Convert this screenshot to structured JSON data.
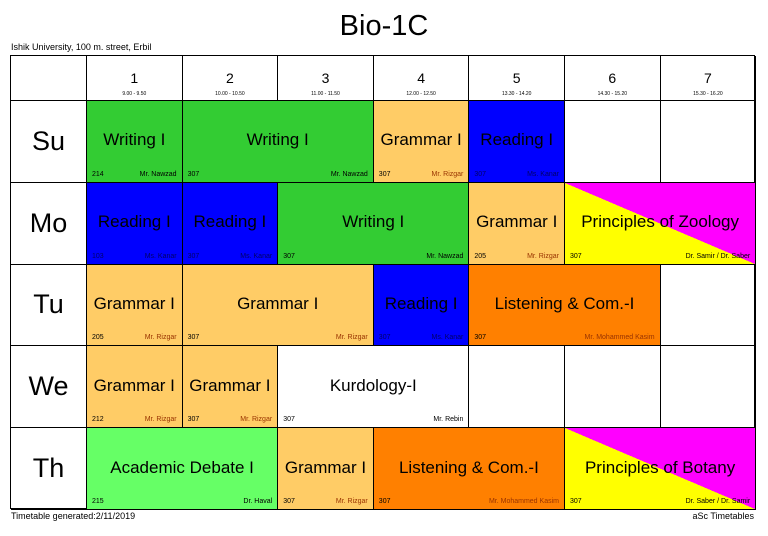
{
  "title": "Bio-1C",
  "subtitle": "Ishik University, 100 m. street, Erbil",
  "footer_left": "Timetable generated:2/11/2019",
  "footer_right": "aSc Timetables",
  "periods": [
    {
      "num": "1",
      "time": "9.00 - 9.50"
    },
    {
      "num": "2",
      "time": "10.00 - 10.50"
    },
    {
      "num": "3",
      "time": "11.00 - 11.50"
    },
    {
      "num": "4",
      "time": "12.00 - 12.50"
    },
    {
      "num": "5",
      "time": "13.30 - 14.20"
    },
    {
      "num": "6",
      "time": "14.30 - 15.20"
    },
    {
      "num": "7",
      "time": "15.30 - 16.20"
    }
  ],
  "colors": {
    "writing": "#33cc33",
    "reading": "#0000ff",
    "grammar": "#ffcc66",
    "listening": "#ff8000",
    "debate": "#66ff66",
    "kurdology": "#ffffff",
    "magenta": "#ff00ff",
    "yellow": "#ffff00"
  },
  "days": [
    {
      "name": "Su",
      "lessons": [
        {
          "subject": "Writing I",
          "room": "214",
          "teacher": "Mr. Nawzad",
          "start": 1,
          "span": 1,
          "color": "writing"
        },
        {
          "subject": "Writing I",
          "room": "307",
          "teacher": "Mr. Nawzad",
          "start": 2,
          "span": 2,
          "color": "writing"
        },
        {
          "subject": "Grammar I",
          "room": "307",
          "teacher": "Mr. Rizgar",
          "start": 4,
          "span": 1,
          "color": "grammar"
        },
        {
          "subject": "Reading I",
          "room": "307",
          "teacher": "Ms. Kanar",
          "start": 5,
          "span": 1,
          "color": "reading"
        }
      ]
    },
    {
      "name": "Mo",
      "lessons": [
        {
          "subject": "Reading I",
          "room": "103",
          "teacher": "Ms. Kanar",
          "start": 1,
          "span": 1,
          "color": "reading"
        },
        {
          "subject": "Reading I",
          "room": "307",
          "teacher": "Ms. Kanar",
          "start": 2,
          "span": 1,
          "color": "reading"
        },
        {
          "subject": "Writing I",
          "room": "307",
          "teacher": "Mr. Nawzad",
          "start": 3,
          "span": 2,
          "color": "writing"
        },
        {
          "subject": "Grammar I",
          "room": "205",
          "teacher": "Mr. Rizgar",
          "start": 5,
          "span": 1,
          "color": "grammar"
        },
        {
          "subject": "Principles of Zoology",
          "room": "307",
          "teacher": "Dr. Samir / Dr. Saber",
          "start": 6,
          "span": 2,
          "color": "split"
        }
      ]
    },
    {
      "name": "Tu",
      "lessons": [
        {
          "subject": "Grammar I",
          "room": "205",
          "teacher": "Mr. Rizgar",
          "start": 1,
          "span": 1,
          "color": "grammar"
        },
        {
          "subject": "Grammar I",
          "room": "307",
          "teacher": "Mr. Rizgar",
          "start": 2,
          "span": 2,
          "color": "grammar"
        },
        {
          "subject": "Reading I",
          "room": "307",
          "teacher": "Ms. Kanar",
          "start": 4,
          "span": 1,
          "color": "reading"
        },
        {
          "subject": "Listening & Com.-I",
          "room": "307",
          "teacher": "Mr. Mohammed Kasim",
          "start": 5,
          "span": 2,
          "color": "listening"
        }
      ]
    },
    {
      "name": "We",
      "lessons": [
        {
          "subject": "Grammar I",
          "room": "212",
          "teacher": "Mr. Rizgar",
          "start": 1,
          "span": 1,
          "color": "grammar"
        },
        {
          "subject": "Grammar I",
          "room": "307",
          "teacher": "Mr. Rizgar",
          "start": 2,
          "span": 1,
          "color": "grammar"
        },
        {
          "subject": "Kurdology-I",
          "room": "307",
          "teacher": "Mr. Rebin",
          "start": 3,
          "span": 2,
          "color": "kurdology"
        }
      ]
    },
    {
      "name": "Th",
      "lessons": [
        {
          "subject": "Academic Debate I",
          "room": "215",
          "teacher": "Dr. Haval",
          "start": 1,
          "span": 2,
          "color": "debate"
        },
        {
          "subject": "Grammar I",
          "room": "307",
          "teacher": "Mr. Rizgar",
          "start": 3,
          "span": 1,
          "color": "grammar"
        },
        {
          "subject": "Listening & Com.-I",
          "room": "307",
          "teacher": "Mr. Mohammed Kasim",
          "start": 4,
          "span": 2,
          "color": "listening"
        },
        {
          "subject": "Principles of Botany",
          "room": "307",
          "teacher": "Dr. Saber / Dr. Samir",
          "start": 6,
          "span": 2,
          "color": "split"
        }
      ]
    }
  ]
}
